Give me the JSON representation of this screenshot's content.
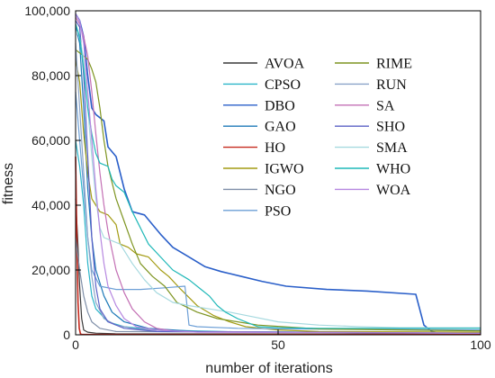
{
  "chart_data": {
    "type": "line",
    "xlabel": "number of iterations",
    "ylabel": "fitness",
    "xlim": [
      0,
      100
    ],
    "ylim": [
      0,
      100000
    ],
    "x_ticks": [
      {
        "value": 0,
        "label": "0"
      },
      {
        "value": 50,
        "label": "50"
      },
      {
        "value": 100,
        "label": "100"
      }
    ],
    "y_ticks": [
      {
        "value": 0,
        "label": "0"
      },
      {
        "value": 20000,
        "label": "20,000"
      },
      {
        "value": 40000,
        "label": "40,000"
      },
      {
        "value": 60000,
        "label": "60,000"
      },
      {
        "value": 80000,
        "label": "80,000"
      },
      {
        "value": 100000,
        "label": "100,000"
      }
    ],
    "grid": false,
    "legend_position": "top-right",
    "series": [
      {
        "name": "AVOA",
        "color": "#3a3a3a",
        "points": [
          [
            0,
            42000
          ],
          [
            0.5,
            30000
          ],
          [
            1,
            15000
          ],
          [
            1.5,
            5000
          ],
          [
            2,
            1500
          ],
          [
            3,
            800
          ],
          [
            5,
            500
          ],
          [
            10,
            300
          ],
          [
            100,
            200
          ]
        ]
      },
      {
        "name": "CPSO",
        "color": "#2bb5c9",
        "points": [
          [
            0,
            60000
          ],
          [
            1,
            52000
          ],
          [
            2,
            40000
          ],
          [
            3,
            22000
          ],
          [
            4,
            12000
          ],
          [
            5,
            8000
          ],
          [
            8,
            4000
          ],
          [
            12,
            2500
          ],
          [
            20,
            1500
          ],
          [
            40,
            900
          ],
          [
            100,
            600
          ]
        ]
      },
      {
        "name": "DBO",
        "color": "#2a5fc9",
        "points": [
          [
            0,
            99000
          ],
          [
            1,
            97000
          ],
          [
            2,
            92000
          ],
          [
            3,
            80000
          ],
          [
            4,
            70000
          ],
          [
            5,
            68000
          ],
          [
            7,
            66000
          ],
          [
            8,
            58000
          ],
          [
            10,
            55000
          ],
          [
            12,
            45000
          ],
          [
            14,
            38000
          ],
          [
            17,
            37000
          ],
          [
            19,
            34000
          ],
          [
            21,
            31000
          ],
          [
            24,
            27000
          ],
          [
            28,
            24000
          ],
          [
            32,
            21000
          ],
          [
            36,
            19500
          ],
          [
            41,
            18000
          ],
          [
            46,
            16500
          ],
          [
            52,
            15000
          ],
          [
            62,
            14000
          ],
          [
            72,
            13500
          ],
          [
            84,
            12500
          ],
          [
            86,
            3000
          ],
          [
            88,
            1000
          ],
          [
            90,
            500
          ],
          [
            100,
            500
          ]
        ]
      },
      {
        "name": "GAO",
        "color": "#1d79b8",
        "points": [
          [
            0,
            95000
          ],
          [
            1,
            90000
          ],
          [
            2,
            70000
          ],
          [
            3,
            45000
          ],
          [
            4,
            30000
          ],
          [
            5,
            20000
          ],
          [
            7,
            12000
          ],
          [
            9,
            7000
          ],
          [
            12,
            4000
          ],
          [
            18,
            2000
          ],
          [
            30,
            1000
          ],
          [
            100,
            500
          ]
        ]
      },
      {
        "name": "HO",
        "color": "#c62a1e",
        "points": [
          [
            0,
            55000
          ],
          [
            0.3,
            30000
          ],
          [
            0.6,
            10000
          ],
          [
            0.9,
            2000
          ],
          [
            1.2,
            300
          ],
          [
            1.5,
            100
          ],
          [
            100,
            100
          ]
        ]
      },
      {
        "name": "IGWO",
        "color": "#a39b12",
        "points": [
          [
            0,
            85000
          ],
          [
            1,
            78000
          ],
          [
            2,
            62000
          ],
          [
            3,
            50000
          ],
          [
            4,
            42000
          ],
          [
            5,
            40000
          ],
          [
            6,
            38000
          ],
          [
            8,
            37000
          ],
          [
            10,
            34000
          ],
          [
            11,
            28000
          ],
          [
            13,
            27000
          ],
          [
            15,
            25000
          ],
          [
            18,
            24000
          ],
          [
            21,
            20000
          ],
          [
            23,
            18000
          ],
          [
            26,
            14000
          ],
          [
            30,
            9000
          ],
          [
            34,
            6000
          ],
          [
            38,
            4000
          ],
          [
            42,
            2500
          ],
          [
            50,
            1500
          ],
          [
            60,
            1000
          ],
          [
            100,
            800
          ]
        ]
      },
      {
        "name": "NGO",
        "color": "#7f8fa8",
        "points": [
          [
            0,
            30000
          ],
          [
            1,
            20000
          ],
          [
            2,
            12000
          ],
          [
            3,
            7000
          ],
          [
            4,
            4000
          ],
          [
            6,
            2000
          ],
          [
            10,
            1000
          ],
          [
            100,
            500
          ]
        ]
      },
      {
        "name": "PSO",
        "color": "#6c9fd6",
        "points": [
          [
            0,
            75000
          ],
          [
            1,
            60000
          ],
          [
            2,
            45000
          ],
          [
            3,
            30000
          ],
          [
            4,
            20000
          ],
          [
            6,
            15000
          ],
          [
            10,
            14000
          ],
          [
            16,
            14000
          ],
          [
            22,
            14500
          ],
          [
            27,
            15000
          ],
          [
            28,
            3000
          ],
          [
            30,
            2500
          ],
          [
            40,
            2000
          ],
          [
            55,
            1800
          ],
          [
            100,
            1500
          ]
        ]
      },
      {
        "name": "RIME",
        "color": "#7d9420",
        "points": [
          [
            0,
            88000
          ],
          [
            1,
            87000
          ],
          [
            2,
            86000
          ],
          [
            3,
            85000
          ],
          [
            4,
            82000
          ],
          [
            5,
            78000
          ],
          [
            6,
            70000
          ],
          [
            7,
            60000
          ],
          [
            8,
            52000
          ],
          [
            9,
            47000
          ],
          [
            10,
            42000
          ],
          [
            12,
            35000
          ],
          [
            14,
            28000
          ],
          [
            16,
            22000
          ],
          [
            19,
            18000
          ],
          [
            22,
            15000
          ],
          [
            25,
            10000
          ],
          [
            30,
            7000
          ],
          [
            35,
            5000
          ],
          [
            45,
            3000
          ],
          [
            60,
            1800
          ],
          [
            100,
            1200
          ]
        ]
      },
      {
        "name": "RUN",
        "color": "#8aa3c8",
        "points": [
          [
            0,
            90000
          ],
          [
            1,
            70000
          ],
          [
            2,
            50000
          ],
          [
            3,
            30000
          ],
          [
            4,
            18000
          ],
          [
            5,
            10000
          ],
          [
            7,
            5000
          ],
          [
            10,
            3000
          ],
          [
            15,
            1800
          ],
          [
            25,
            1000
          ],
          [
            100,
            500
          ]
        ]
      },
      {
        "name": "SA",
        "color": "#c36fb4",
        "points": [
          [
            0,
            98000
          ],
          [
            1,
            96000
          ],
          [
            2,
            92000
          ],
          [
            3,
            86000
          ],
          [
            4,
            75000
          ],
          [
            5,
            62000
          ],
          [
            6,
            50000
          ],
          [
            7,
            40000
          ],
          [
            8,
            32000
          ],
          [
            9,
            26000
          ],
          [
            10,
            20000
          ],
          [
            12,
            13000
          ],
          [
            14,
            8000
          ],
          [
            17,
            4000
          ],
          [
            20,
            2000
          ],
          [
            25,
            1000
          ],
          [
            100,
            500
          ]
        ]
      },
      {
        "name": "SHO",
        "color": "#5b60c6",
        "points": [
          [
            0,
            97000
          ],
          [
            1,
            95000
          ],
          [
            2,
            80000
          ],
          [
            3,
            55000
          ],
          [
            4,
            30000
          ],
          [
            5,
            15000
          ],
          [
            6,
            8000
          ],
          [
            8,
            4000
          ],
          [
            12,
            2000
          ],
          [
            20,
            1000
          ],
          [
            100,
            500
          ]
        ]
      },
      {
        "name": "SMA",
        "color": "#a6d9df",
        "points": [
          [
            0,
            94000
          ],
          [
            1,
            92000
          ],
          [
            2,
            85000
          ],
          [
            3,
            70000
          ],
          [
            4,
            55000
          ],
          [
            5,
            42000
          ],
          [
            6,
            33000
          ],
          [
            7,
            30000
          ],
          [
            9,
            29000
          ],
          [
            11,
            28000
          ],
          [
            14,
            22000
          ],
          [
            17,
            17000
          ],
          [
            20,
            13000
          ],
          [
            24,
            10000
          ],
          [
            28,
            9000
          ],
          [
            33,
            8000
          ],
          [
            38,
            7000
          ],
          [
            44,
            5500
          ],
          [
            50,
            4000
          ],
          [
            60,
            3000
          ],
          [
            70,
            2500
          ],
          [
            80,
            2200
          ],
          [
            100,
            2200
          ]
        ]
      },
      {
        "name": "WHO",
        "color": "#1fb8b8",
        "points": [
          [
            0,
            96000
          ],
          [
            1,
            92000
          ],
          [
            2,
            82000
          ],
          [
            3,
            70000
          ],
          [
            4,
            62000
          ],
          [
            5,
            56000
          ],
          [
            6,
            53000
          ],
          [
            8,
            52000
          ],
          [
            9,
            48000
          ],
          [
            10,
            46000
          ],
          [
            12,
            44000
          ],
          [
            14,
            38000
          ],
          [
            16,
            33000
          ],
          [
            18,
            28000
          ],
          [
            21,
            24000
          ],
          [
            24,
            20000
          ],
          [
            28,
            17000
          ],
          [
            31,
            14000
          ],
          [
            33,
            12000
          ],
          [
            35,
            9000
          ],
          [
            37,
            7000
          ],
          [
            40,
            5000
          ],
          [
            43,
            3500
          ],
          [
            45,
            2500
          ],
          [
            50,
            2200
          ],
          [
            60,
            2000
          ],
          [
            100,
            2000
          ]
        ]
      },
      {
        "name": "WOA",
        "color": "#b687e0",
        "points": [
          [
            0,
            99000
          ],
          [
            1,
            97000
          ],
          [
            2,
            90000
          ],
          [
            3,
            75000
          ],
          [
            4,
            60000
          ],
          [
            5,
            45000
          ],
          [
            6,
            32000
          ],
          [
            7,
            22000
          ],
          [
            8,
            15000
          ],
          [
            10,
            9000
          ],
          [
            12,
            5000
          ],
          [
            15,
            2500
          ],
          [
            20,
            1500
          ],
          [
            30,
            800
          ],
          [
            100,
            500
          ]
        ]
      }
    ]
  }
}
